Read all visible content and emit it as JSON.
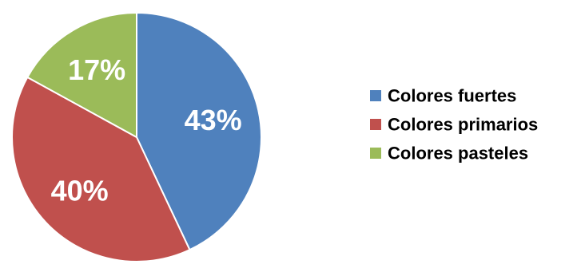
{
  "chart_data": {
    "type": "pie",
    "categories": [
      "Colores fuertes",
      "Colores primarios",
      "Colores pasteles"
    ],
    "values": [
      43,
      40,
      17
    ],
    "value_labels": [
      "43%",
      "40%",
      "17%"
    ],
    "colors": [
      "#4f81bd",
      "#c0504d",
      "#9bbb59"
    ],
    "slice_border_color": "#ffffff",
    "start_angle_deg": 0,
    "direction": "clockwise",
    "legend_placement": "right"
  }
}
